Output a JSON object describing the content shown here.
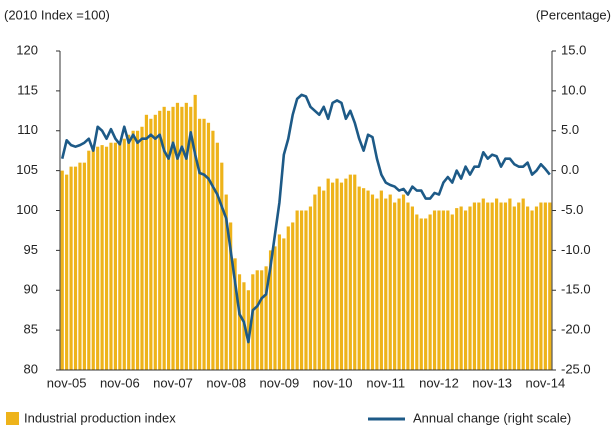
{
  "chart_data": {
    "type": "bar-line",
    "y_label": "(2010 Index =100)",
    "y2_label": "(Percentage)",
    "categories": [
      null,
      "nov-05",
      null,
      null,
      null,
      null,
      null,
      null,
      null,
      null,
      null,
      null,
      null,
      "nov-06",
      null,
      null,
      null,
      null,
      null,
      null,
      null,
      null,
      null,
      null,
      null,
      "nov-07",
      null,
      null,
      null,
      null,
      null,
      null,
      null,
      null,
      null,
      null,
      null,
      "nov-08",
      null,
      null,
      null,
      null,
      null,
      null,
      null,
      null,
      null,
      null,
      null,
      "nov-09",
      null,
      null,
      null,
      null,
      null,
      null,
      null,
      null,
      null,
      null,
      null,
      "nov-10",
      null,
      null,
      null,
      null,
      null,
      null,
      null,
      null,
      null,
      null,
      null,
      "nov-11",
      null,
      null,
      null,
      null,
      null,
      null,
      null,
      null,
      null,
      null,
      null,
      "nov-12",
      null,
      null,
      null,
      null,
      null,
      null,
      null,
      null,
      null,
      null,
      null,
      "nov-13",
      null,
      null,
      null,
      null,
      null,
      null,
      null,
      null,
      null,
      null,
      null,
      "nov-14",
      null
    ],
    "series": [
      {
        "name": "Industrial production index",
        "color": "#eeb31a",
        "axis": "y",
        "values": [
          105,
          104.5,
          105.5,
          105.5,
          106,
          106,
          107.5,
          108,
          108,
          108.2,
          108,
          108.5,
          108.5,
          108.5,
          109,
          109.5,
          110,
          110,
          110.5,
          112,
          111.5,
          112,
          112.5,
          113,
          112.5,
          113,
          113.5,
          113,
          113.5,
          113,
          114.5,
          111.5,
          111.5,
          111,
          110,
          108.5,
          106,
          102,
          98.5,
          94,
          92,
          91,
          90,
          92,
          92.5,
          92.5,
          93,
          95,
          95.5,
          97,
          96.5,
          98,
          98.5,
          100,
          100,
          100,
          100.5,
          102,
          103,
          102.5,
          104,
          103.5,
          104,
          103.5,
          104,
          104.5,
          104.5,
          103,
          102.8,
          102.5,
          102,
          101.5,
          102.5,
          101.5,
          102,
          101,
          101.5,
          102,
          101,
          100.5,
          99.5,
          99,
          99,
          99.5,
          100,
          100,
          100,
          100,
          99.5,
          100.3,
          100.5,
          100,
          100.5,
          101,
          101,
          101.5,
          101,
          101,
          101.5,
          101,
          101,
          101.5,
          100.5,
          101,
          101.5,
          100.5,
          100,
          100.5,
          101,
          101,
          101
        ]
      },
      {
        "name": "Annual change (right scale)",
        "color": "#1d5a87",
        "axis": "y2",
        "values": [
          1.5,
          3.8,
          3.2,
          3,
          3.2,
          3.5,
          4,
          2.5,
          5.5,
          5,
          4,
          5.2,
          4,
          3.3,
          5.5,
          3.5,
          4.5,
          3.5,
          4,
          4,
          4.5,
          4,
          4.5,
          2.5,
          1.5,
          3.5,
          1.5,
          3,
          1.5,
          4.8,
          2,
          -0.3,
          -0.5,
          -1,
          -2,
          -3,
          -4.5,
          -6,
          -10,
          -14,
          -18,
          -19,
          -21.5,
          -17.5,
          -17,
          -16,
          -15.5,
          -12,
          -8,
          -4,
          2,
          4,
          7,
          9,
          9.5,
          9.3,
          8,
          7.5,
          7,
          8,
          6.5,
          8.5,
          8.8,
          8.5,
          6.5,
          7.5,
          6,
          4,
          2.5,
          4.5,
          4.2,
          1.5,
          -0.5,
          -1.5,
          -1.8,
          -2,
          -2.5,
          -2.3,
          -3,
          -2,
          -2.5,
          -2.5,
          -3.5,
          -3.5,
          -2.8,
          -3,
          -1.5,
          -0.8,
          -1.5,
          0,
          -1,
          0.5,
          -0.5,
          0.5,
          0.5,
          2.3,
          1.5,
          2,
          1.8,
          0.5,
          1.5,
          1.5,
          0.8,
          0.5,
          0.5,
          1,
          -0.5,
          0,
          0.8,
          0.2,
          -0.5
        ]
      }
    ],
    "ylim": [
      80,
      120
    ],
    "yticks": [
      80,
      85,
      90,
      95,
      100,
      105,
      110,
      115,
      120
    ],
    "y2lim": [
      -25,
      15
    ],
    "y2ticks": [
      {
        "value": -25,
        "label": "-25.0"
      },
      {
        "value": -20,
        "label": "-20.0"
      },
      {
        "value": -15,
        "label": "-15.0"
      },
      {
        "value": -10,
        "label": "-10.0"
      },
      {
        "value": -5,
        "label": "-5.0"
      },
      {
        "value": 0,
        "label": "0.0"
      },
      {
        "value": 5,
        "label": "5.0"
      },
      {
        "value": 10,
        "label": "10.0"
      },
      {
        "value": 15,
        "label": "15.0"
      }
    ],
    "grid": false
  }
}
